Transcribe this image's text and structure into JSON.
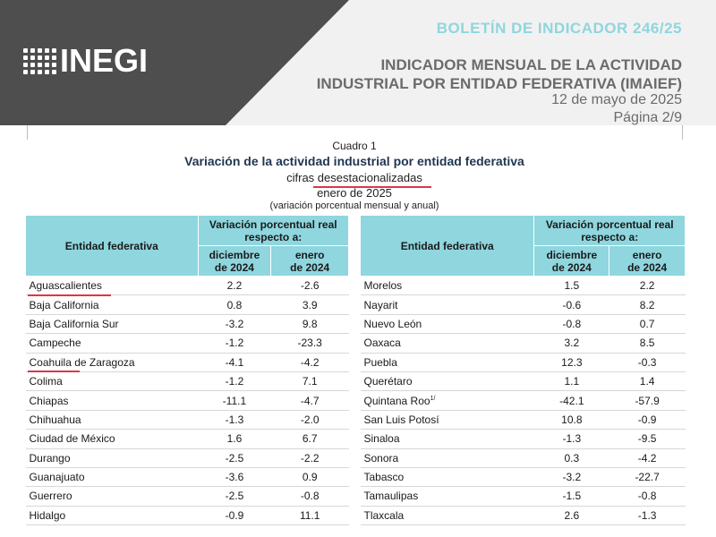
{
  "header": {
    "logo_text": "INEGI",
    "bulletin": "BOLETÍN DE INDICADOR 246/25",
    "title_line1": "INDICADOR MENSUAL DE LA ACTIVIDAD",
    "title_line2": "INDUSTRIAL POR ENTIDAD FEDERATIVA (IMAIEF)",
    "date": "12 de mayo de 2025",
    "page": "Página 2/9"
  },
  "caption": {
    "cuadro": "Cuadro 1",
    "title": "Variación de la actividad industrial por entidad federativa",
    "cifras": "cifras",
    "cifras_tipo": "desestacionalizadas",
    "periodo": "enero de 2025",
    "nota": "(variación porcentual mensual y anual)"
  },
  "table_headers": {
    "entity": "Entidad federativa",
    "variation_line1": "Variación porcentual real",
    "variation_line2": "respecto a:",
    "col1_line1": "diciembre",
    "col1_line2": "de 2024",
    "col2_line1": "enero",
    "col2_line2": "de 2024"
  },
  "left_rows": [
    {
      "name": "Aguascalientes",
      "dic": "2.2",
      "ene": "-2.6"
    },
    {
      "name": "Baja California",
      "dic": "0.8",
      "ene": "3.9"
    },
    {
      "name": "Baja California Sur",
      "dic": "-3.2",
      "ene": "9.8"
    },
    {
      "name": "Campeche",
      "dic": "-1.2",
      "ene": "-23.3"
    },
    {
      "name": "Coahuila de Zaragoza",
      "dic": "-4.1",
      "ene": "-4.2"
    },
    {
      "name": "Colima",
      "dic": "-1.2",
      "ene": "7.1"
    },
    {
      "name": "Chiapas",
      "dic": "-11.1",
      "ene": "-4.7"
    },
    {
      "name": "Chihuahua",
      "dic": "-1.3",
      "ene": "-2.0"
    },
    {
      "name": "Ciudad de México",
      "dic": "1.6",
      "ene": "6.7"
    },
    {
      "name": "Durango",
      "dic": "-2.5",
      "ene": "-2.2"
    },
    {
      "name": "Guanajuato",
      "dic": "-3.6",
      "ene": "0.9"
    },
    {
      "name": "Guerrero",
      "dic": "-2.5",
      "ene": "-0.8"
    },
    {
      "name": "Hidalgo",
      "dic": "-0.9",
      "ene": "11.1"
    }
  ],
  "right_rows": [
    {
      "name": "Morelos",
      "dic": "1.5",
      "ene": "2.2"
    },
    {
      "name": "Nayarit",
      "dic": "-0.6",
      "ene": "8.2"
    },
    {
      "name": "Nuevo León",
      "dic": "-0.8",
      "ene": "0.7"
    },
    {
      "name": "Oaxaca",
      "dic": "3.2",
      "ene": "8.5"
    },
    {
      "name": "Puebla",
      "dic": "12.3",
      "ene": "-0.3"
    },
    {
      "name": "Querétaro",
      "dic": "1.1",
      "ene": "1.4"
    },
    {
      "name": "Quintana Roo",
      "note": "1/",
      "dic": "-42.1",
      "ene": "-57.9"
    },
    {
      "name": "San Luis Potosí",
      "dic": "10.8",
      "ene": "-0.9"
    },
    {
      "name": "Sinaloa",
      "dic": "-1.3",
      "ene": "-9.5"
    },
    {
      "name": "Sonora",
      "dic": "0.3",
      "ene": "-4.2"
    },
    {
      "name": "Tabasco",
      "dic": "-3.2",
      "ene": "-22.7"
    },
    {
      "name": "Tamaulipas",
      "dic": "-1.5",
      "ene": "-0.8"
    },
    {
      "name": "Tlaxcala",
      "dic": "2.6",
      "ene": "-1.3"
    }
  ]
}
